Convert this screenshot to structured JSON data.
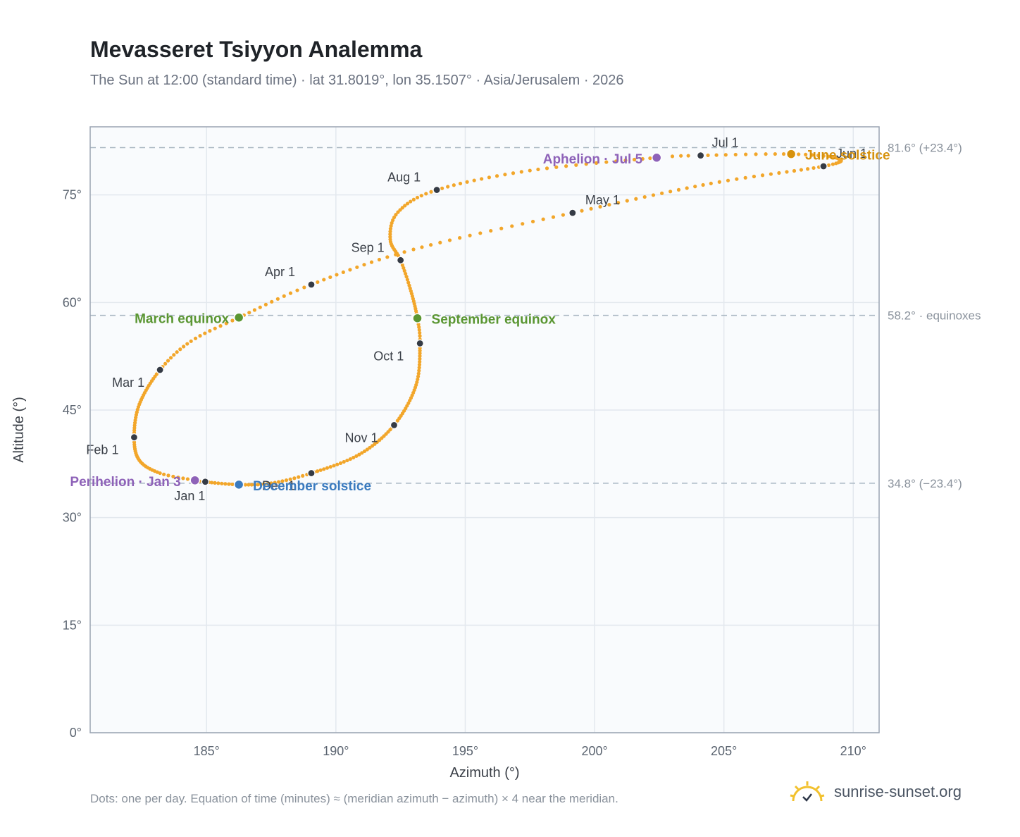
{
  "header": {
    "title": "Mevasseret Tsiyyon Analemma",
    "subtitle": "The Sun at 12:00 (standard time) · lat 31.8019°, lon 35.1507° · Asia/Jerusalem · 2026"
  },
  "footer": {
    "note": "Dots: one per day. Equation of time (minutes) ≈ (meridian azimuth − azimuth) × 4 near the meridian.",
    "brand": "sunrise-sunset.org"
  },
  "colors": {
    "path": "#f2a62a",
    "month_dot": "#353b45",
    "equinox": "#5a9632",
    "apsis": "#8e62b8",
    "june_solstice": "#d6910c",
    "december_solstice": "#3b7bbf",
    "plot_bg": "#f9fbfd",
    "grid": "#e3e8ee",
    "frame": "#9aa4b2",
    "ref_line": "#a9b6c2"
  },
  "chart_data": {
    "type": "scatter",
    "title": "Mevasseret Tsiyyon Analemma",
    "xlabel": "Azimuth (°)",
    "ylabel": "Altitude (°)",
    "xlim": [
      180.5,
      211
    ],
    "ylim": [
      0,
      84.5
    ],
    "xticks": [
      185,
      190,
      195,
      200,
      205,
      210
    ],
    "yticks": [
      0,
      15,
      30,
      45,
      60,
      75
    ],
    "tick_suffix": "°",
    "grid": true,
    "analemma_path": [
      {
        "doy": 1,
        "az": 184.9,
        "alt": 35.0
      },
      {
        "doy": 3,
        "az": 184.55,
        "alt": 35.2
      },
      {
        "doy": 11,
        "az": 183.2,
        "alt": 36.2
      },
      {
        "doy": 21,
        "az": 182.4,
        "alt": 38.0
      },
      {
        "doy": 32,
        "az": 182.2,
        "alt": 41.2
      },
      {
        "doy": 45,
        "az": 182.4,
        "alt": 45.8
      },
      {
        "doy": 60,
        "az": 183.2,
        "alt": 50.6
      },
      {
        "doy": 70,
        "az": 184.4,
        "alt": 54.6
      },
      {
        "doy": 79,
        "az": 186.25,
        "alt": 57.9
      },
      {
        "doy": 91,
        "az": 189.05,
        "alt": 62.5
      },
      {
        "doy": 105,
        "az": 193.0,
        "alt": 67.4
      },
      {
        "doy": 121,
        "az": 199.15,
        "alt": 72.5
      },
      {
        "doy": 137,
        "az": 204.5,
        "alt": 76.6
      },
      {
        "doy": 152,
        "az": 208.85,
        "alt": 79.0
      },
      {
        "doy": 163,
        "az": 209.4,
        "alt": 80.1
      },
      {
        "doy": 172,
        "az": 207.6,
        "alt": 80.7
      },
      {
        "doy": 182,
        "az": 204.1,
        "alt": 80.5
      },
      {
        "doy": 186,
        "az": 202.4,
        "alt": 80.2
      },
      {
        "doy": 200,
        "az": 197.5,
        "alt": 78.4
      },
      {
        "doy": 213,
        "az": 193.9,
        "alt": 75.7
      },
      {
        "doy": 224,
        "az": 192.4,
        "alt": 72.6
      },
      {
        "doy": 234,
        "az": 192.1,
        "alt": 68.8
      },
      {
        "doy": 244,
        "az": 192.5,
        "alt": 65.9
      },
      {
        "doy": 255,
        "az": 192.9,
        "alt": 61.6
      },
      {
        "doy": 266,
        "az": 193.15,
        "alt": 57.8
      },
      {
        "doy": 274,
        "az": 193.25,
        "alt": 54.3
      },
      {
        "doy": 289,
        "az": 193.1,
        "alt": 48.5
      },
      {
        "doy": 305,
        "az": 192.25,
        "alt": 42.9
      },
      {
        "doy": 320,
        "az": 190.9,
        "alt": 38.8
      },
      {
        "doy": 335,
        "az": 189.05,
        "alt": 36.2
      },
      {
        "doy": 345,
        "az": 187.5,
        "alt": 34.8
      },
      {
        "doy": 355,
        "az": 186.25,
        "alt": 34.6
      },
      {
        "doy": 365,
        "az": 184.95,
        "alt": 35.0
      }
    ],
    "month_markers": [
      {
        "label": "Jan 1",
        "az": 184.95,
        "alt": 35.0
      },
      {
        "label": "Feb 1",
        "az": 182.2,
        "alt": 41.2
      },
      {
        "label": "Mar 1",
        "az": 183.2,
        "alt": 50.6
      },
      {
        "label": "Apr 1",
        "az": 189.05,
        "alt": 62.5
      },
      {
        "label": "May 1",
        "az": 199.15,
        "alt": 72.5
      },
      {
        "label": "Jun 1",
        "az": 208.85,
        "alt": 79.0
      },
      {
        "label": "Jul 1",
        "az": 204.1,
        "alt": 80.5
      },
      {
        "label": "Aug 1",
        "az": 193.9,
        "alt": 75.7
      },
      {
        "label": "Sep 1",
        "az": 192.5,
        "alt": 65.9
      },
      {
        "label": "Oct 1",
        "az": 193.25,
        "alt": 54.3
      },
      {
        "label": "Nov 1",
        "az": 192.25,
        "alt": 42.9
      },
      {
        "label": "Dec 1",
        "az": 189.05,
        "alt": 36.2
      }
    ],
    "events": [
      {
        "label": "March equinox",
        "az": 186.25,
        "alt": 57.9,
        "color_key": "equinox"
      },
      {
        "label": "September equinox",
        "az": 193.15,
        "alt": 57.8,
        "color_key": "equinox"
      },
      {
        "label": "June solstice",
        "az": 207.6,
        "alt": 80.7,
        "color_key": "june_solstice"
      },
      {
        "label": "December solstice",
        "az": 186.25,
        "alt": 34.6,
        "color_key": "december_solstice"
      },
      {
        "label": "Perihelion · Jan 3",
        "az": 184.55,
        "alt": 35.2,
        "color_key": "apsis"
      },
      {
        "label": "Aphelion · Jul 5",
        "az": 202.4,
        "alt": 80.2,
        "color_key": "apsis"
      }
    ],
    "reference_lines": [
      {
        "alt": 81.6,
        "label": "81.6° (+23.4°)"
      },
      {
        "alt": 58.2,
        "label": "58.2° · equinoxes"
      },
      {
        "alt": 34.8,
        "label": "34.8° (−23.4°)"
      }
    ]
  }
}
